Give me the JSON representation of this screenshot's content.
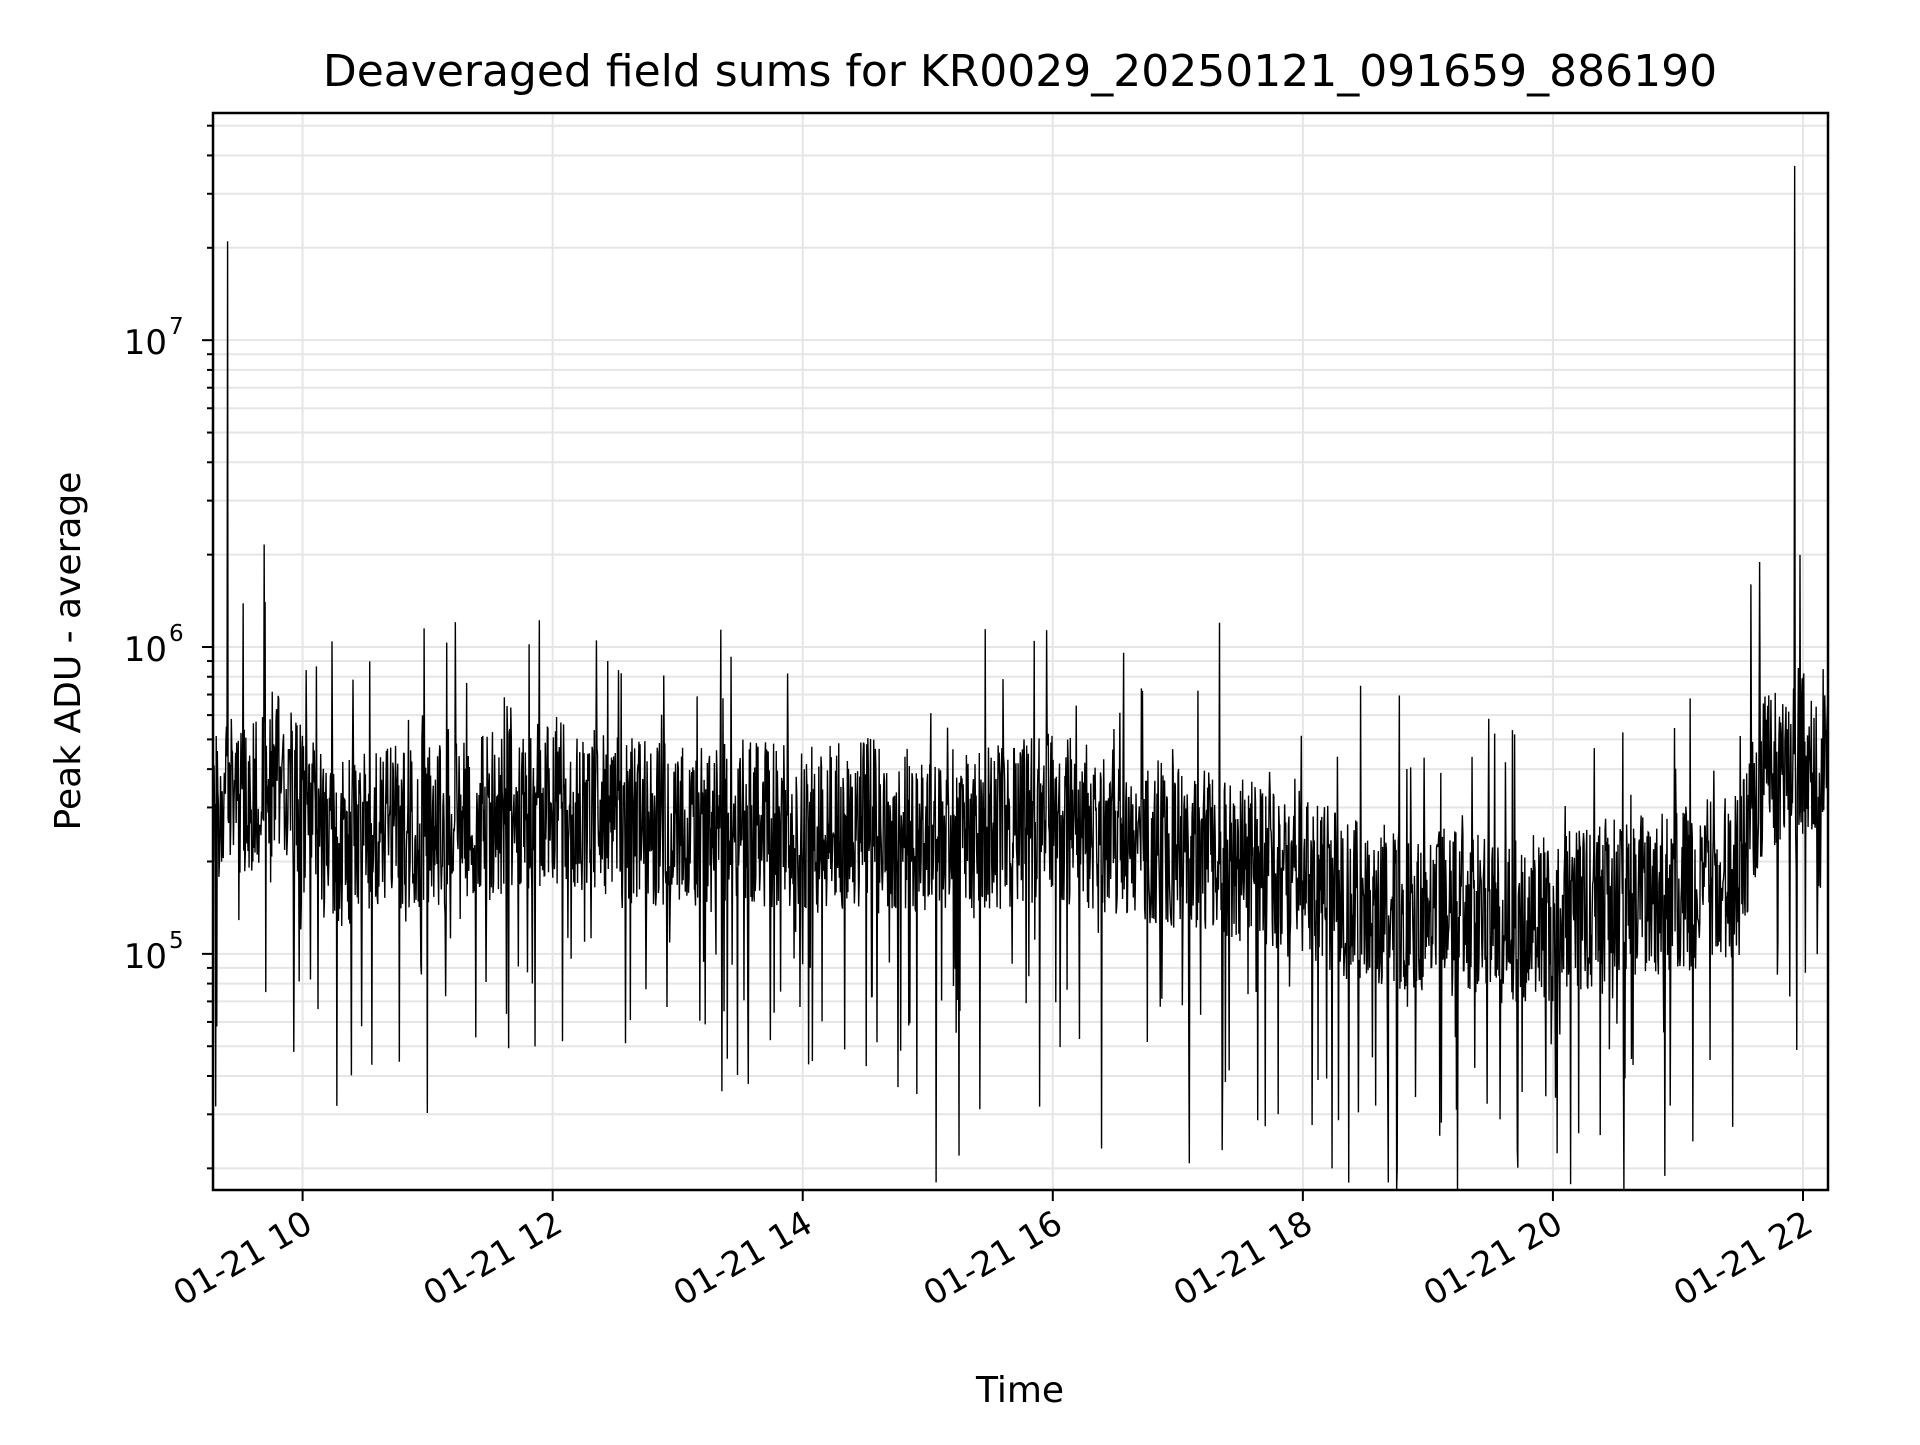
{
  "chart_data": {
    "type": "line",
    "title": "Deaveraged field sums for KR0029_20250121_091659_886190",
    "xlabel": "Time",
    "ylabel": "Peak ADU - average",
    "y_scale": "log",
    "ylim": [
      17000,
      55000000
    ],
    "xlim": [
      "2025-01-21 09:17",
      "2025-01-21 22:12"
    ],
    "grid": "on (major and minor)",
    "legend": "none",
    "line_color": "#000000",
    "x_ticks": [
      {
        "value": "2025-01-21 10:00",
        "label": "01-21 10"
      },
      {
        "value": "2025-01-21 12:00",
        "label": "01-21 12"
      },
      {
        "value": "2025-01-21 14:00",
        "label": "01-21 14"
      },
      {
        "value": "2025-01-21 16:00",
        "label": "01-21 16"
      },
      {
        "value": "2025-01-21 18:00",
        "label": "01-21 18"
      },
      {
        "value": "2025-01-21 20:00",
        "label": "01-21 20"
      },
      {
        "value": "2025-01-21 22:00",
        "label": "01-21 22"
      }
    ],
    "y_ticks": [
      {
        "value": 100000,
        "base": "10",
        "exp": "5"
      },
      {
        "value": 1000000,
        "base": "10",
        "exp": "6"
      },
      {
        "value": 10000000,
        "base": "10",
        "exp": "7"
      }
    ],
    "series": [
      {
        "x": [
          "2025-01-21 09:17",
          "2025-01-21 09:25",
          "2025-01-21 09:35",
          "2025-01-21 09:45",
          "2025-01-21 10:00",
          "2025-01-21 10:15",
          "2025-01-21 10:30",
          "2025-01-21 11:00",
          "2025-01-21 11:30",
          "2025-01-21 12:00",
          "2025-01-21 12:30",
          "2025-01-21 13:00",
          "2025-01-21 13:30",
          "2025-01-21 14:00",
          "2025-01-21 14:30",
          "2025-01-21 15:00",
          "2025-01-21 15:30",
          "2025-01-21 16:00",
          "2025-01-21 16:30",
          "2025-01-21 17:00",
          "2025-01-21 17:30",
          "2025-01-21 18:00",
          "2025-01-21 18:30",
          "2025-01-21 19:00",
          "2025-01-21 19:30",
          "2025-01-21 20:00",
          "2025-01-21 20:30",
          "2025-01-21 21:00",
          "2025-01-21 21:30",
          "2025-01-21 21:40",
          "2025-01-21 21:55",
          "2025-01-21 22:12"
        ],
        "y": [
          300000,
          320000,
          330000,
          420000,
          300000,
          220000,
          250000,
          260000,
          280000,
          320000,
          280000,
          260000,
          270000,
          250000,
          270000,
          240000,
          260000,
          280000,
          250000,
          220000,
          200000,
          170000,
          150000,
          140000,
          130000,
          130000,
          150000,
          160000,
          180000,
          380000,
          450000,
          480000
        ]
      }
    ],
    "spikes": [
      {
        "x": "2025-01-21 09:24",
        "y": 21000000
      },
      {
        "x": "2025-01-21 09:42",
        "y": 1400000
      },
      {
        "x": "2025-01-21 17:20",
        "y": 1200000
      },
      {
        "x": "2025-01-21 21:35",
        "y": 1600000
      },
      {
        "x": "2025-01-21 21:56",
        "y": 37000000
      }
    ],
    "dips": [
      {
        "x": "2025-01-21 15:04",
        "y": 18000
      },
      {
        "x": "2025-01-21 18:41",
        "y": 18000
      },
      {
        "x": "2025-01-21 18:14",
        "y": 20000
      },
      {
        "x": "2025-01-21 15:15",
        "y": 22000
      }
    ]
  }
}
